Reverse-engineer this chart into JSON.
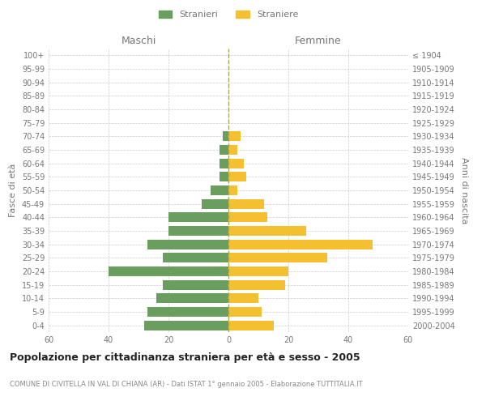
{
  "age_groups": [
    "0-4",
    "5-9",
    "10-14",
    "15-19",
    "20-24",
    "25-29",
    "30-34",
    "35-39",
    "40-44",
    "45-49",
    "50-54",
    "55-59",
    "60-64",
    "65-69",
    "70-74",
    "75-79",
    "80-84",
    "85-89",
    "90-94",
    "95-99",
    "100+"
  ],
  "birth_years": [
    "2000-2004",
    "1995-1999",
    "1990-1994",
    "1985-1989",
    "1980-1984",
    "1975-1979",
    "1970-1974",
    "1965-1969",
    "1960-1964",
    "1955-1959",
    "1950-1954",
    "1945-1949",
    "1940-1944",
    "1935-1939",
    "1930-1934",
    "1925-1929",
    "1920-1924",
    "1915-1919",
    "1910-1914",
    "1905-1909",
    "≤ 1904"
  ],
  "males": [
    28,
    27,
    24,
    22,
    40,
    22,
    27,
    20,
    20,
    9,
    6,
    3,
    3,
    3,
    2,
    0,
    0,
    0,
    0,
    0,
    0
  ],
  "females": [
    15,
    11,
    10,
    19,
    20,
    33,
    48,
    26,
    13,
    12,
    3,
    6,
    5,
    3,
    4,
    0,
    0,
    0,
    0,
    0,
    0
  ],
  "male_color": "#6a9e5e",
  "female_color": "#f5c030",
  "title": "Popolazione per cittadinanza straniera per età e sesso - 2005",
  "subtitle": "COMUNE DI CIVITELLA IN VAL DI CHIANA (AR) - Dati ISTAT 1° gennaio 2005 - Elaborazione TUTTITALIA.IT",
  "ylabel_left": "Fasce di età",
  "ylabel_right": "Anni di nascita",
  "xlabel_left": "Maschi",
  "xlabel_right": "Femmine",
  "legend_stranieri": "Stranieri",
  "legend_straniere": "Straniere",
  "xlim": 60,
  "background_color": "#ffffff",
  "grid_color": "#cccccc",
  "axis_label_color": "#777777",
  "tick_color": "#777777",
  "title_color": "#222222",
  "subtitle_color": "#888888"
}
